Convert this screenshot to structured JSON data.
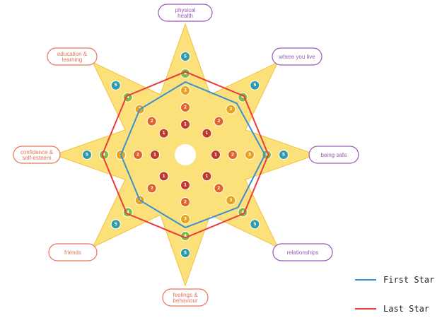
{
  "chart_data": {
    "type": "radar",
    "axes": [
      {
        "label": "physical health",
        "group": "purple"
      },
      {
        "label": "where you live",
        "group": "purple"
      },
      {
        "label": "being safe",
        "group": "purple"
      },
      {
        "label": "relationships",
        "group": "purple"
      },
      {
        "label": "feelings & behaviour",
        "group": "orange"
      },
      {
        "label": "friends",
        "group": "orange"
      },
      {
        "label": "confidence & self-esteem",
        "group": "orange"
      },
      {
        "label": "education & learning",
        "group": "orange"
      }
    ],
    "scale": [
      1,
      2,
      3,
      4,
      5
    ],
    "series": [
      {
        "name": "First Star",
        "color": "#3a8fd0",
        "values": [
          3.5,
          3.5,
          3.9,
          3.6,
          3.5,
          3.0,
          3.0,
          3.0
        ]
      },
      {
        "name": "Last Star",
        "color": "#ea3a3a",
        "values": [
          4.1,
          4.1,
          4.1,
          4.1,
          4.1,
          4.1,
          4.1,
          4.1
        ]
      }
    ],
    "legend_position": "bottom-right",
    "colors": {
      "star_fill": "#fce07a",
      "star_stroke": "#f2c23a",
      "ring_1": "#c0392b",
      "ring_2": "#e0642a",
      "ring_3": "#e9a21c",
      "ring_4": "#86b83a",
      "ring_5": "#2f9aa8",
      "purple_label": "#9b59b6",
      "orange_label": "#e8735a"
    }
  }
}
